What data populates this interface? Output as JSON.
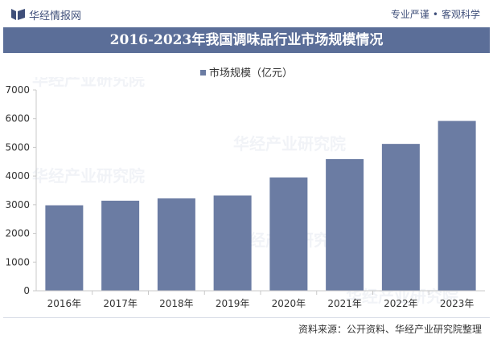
{
  "header": {
    "brand_name": "华经情报网",
    "slogan_left": "专业严谨",
    "slogan_sep": "•",
    "slogan_right": "客观科学"
  },
  "watermark_text": "华经产业研究院",
  "source_text": "资料来源：公开资料、华经产业研究院整理",
  "colors": {
    "bar": "#6b7ca3",
    "title_band": "#5b6e98",
    "brand": "#3f4f7a"
  },
  "chart_data": {
    "type": "bar",
    "title": "2016-2023年我国调味品行业市场规模情况",
    "categories": [
      "2016年",
      "2017年",
      "2018年",
      "2019年",
      "2020年",
      "2021年",
      "2022年",
      "2023年"
    ],
    "series": [
      {
        "name": "市场规模（亿元）",
        "values": [
          2980,
          3140,
          3220,
          3320,
          3950,
          4590,
          5120,
          5920
        ]
      }
    ],
    "yticks": [
      "0",
      "1000",
      "2000",
      "3000",
      "4000",
      "5000",
      "6000",
      "7000"
    ],
    "ylim": [
      0,
      7000
    ],
    "grid": false,
    "legend_position": "top-center"
  }
}
